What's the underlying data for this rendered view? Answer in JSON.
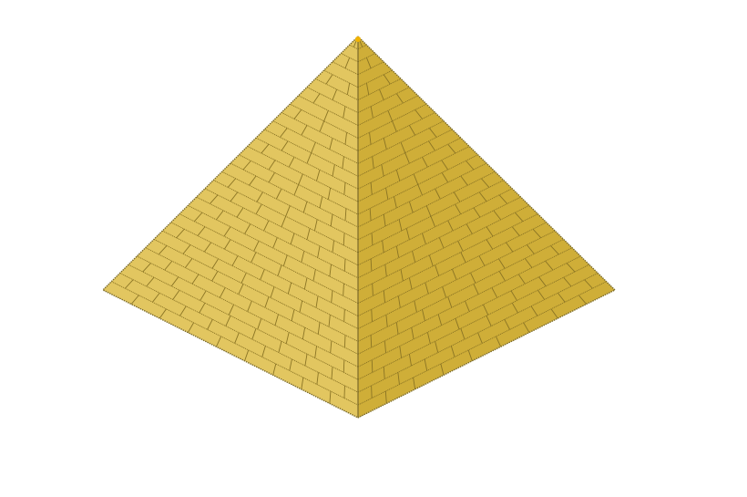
{
  "illustration": {
    "subject": "pyramid-icon",
    "colors": {
      "background": "#ffffff",
      "left_face": "#e2c660",
      "right_face": "#cfae38",
      "mortar": "#8a7424",
      "edge": "#7a6a2a",
      "apex": "#f2b400"
    }
  }
}
